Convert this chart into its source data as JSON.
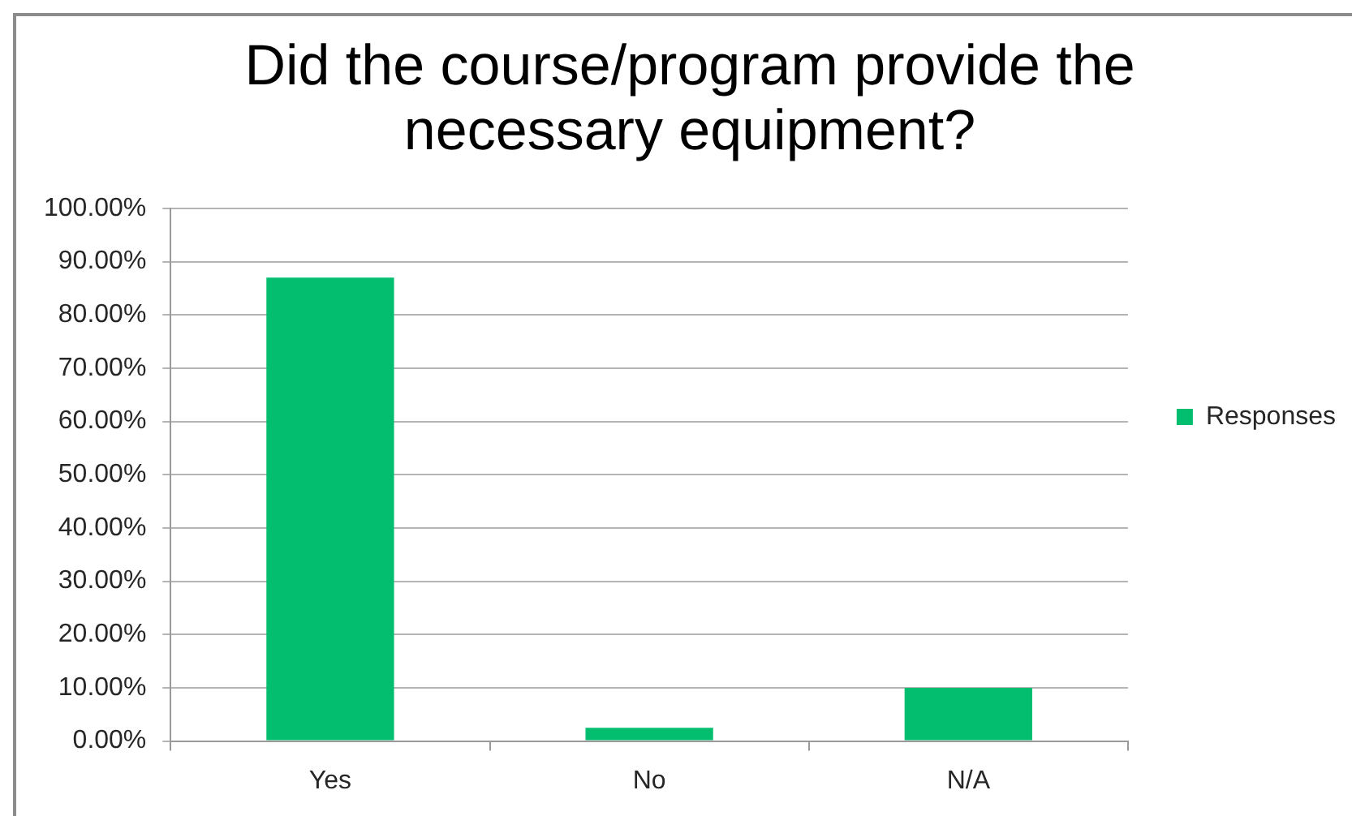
{
  "chart_data": {
    "type": "bar",
    "title": "Did the course/program provide the necessary equipment?",
    "categories": [
      "Yes",
      "No",
      "N/A"
    ],
    "series": [
      {
        "name": "Responses",
        "color": "#02be6e",
        "values": [
          87,
          2.5,
          10
        ]
      }
    ],
    "ylim": [
      0,
      100
    ],
    "yticks": [
      {
        "value": 0,
        "label": "0.00%"
      },
      {
        "value": 10,
        "label": "10.00%"
      },
      {
        "value": 20,
        "label": "20.00%"
      },
      {
        "value": 30,
        "label": "30.00%"
      },
      {
        "value": 40,
        "label": "40.00%"
      },
      {
        "value": 50,
        "label": "50.00%"
      },
      {
        "value": 60,
        "label": "60.00%"
      },
      {
        "value": 70,
        "label": "70.00%"
      },
      {
        "value": 80,
        "label": "80.00%"
      },
      {
        "value": 90,
        "label": "90.00%"
      },
      {
        "value": 100,
        "label": "100.00%"
      }
    ],
    "grid": "y",
    "legend": "right"
  }
}
